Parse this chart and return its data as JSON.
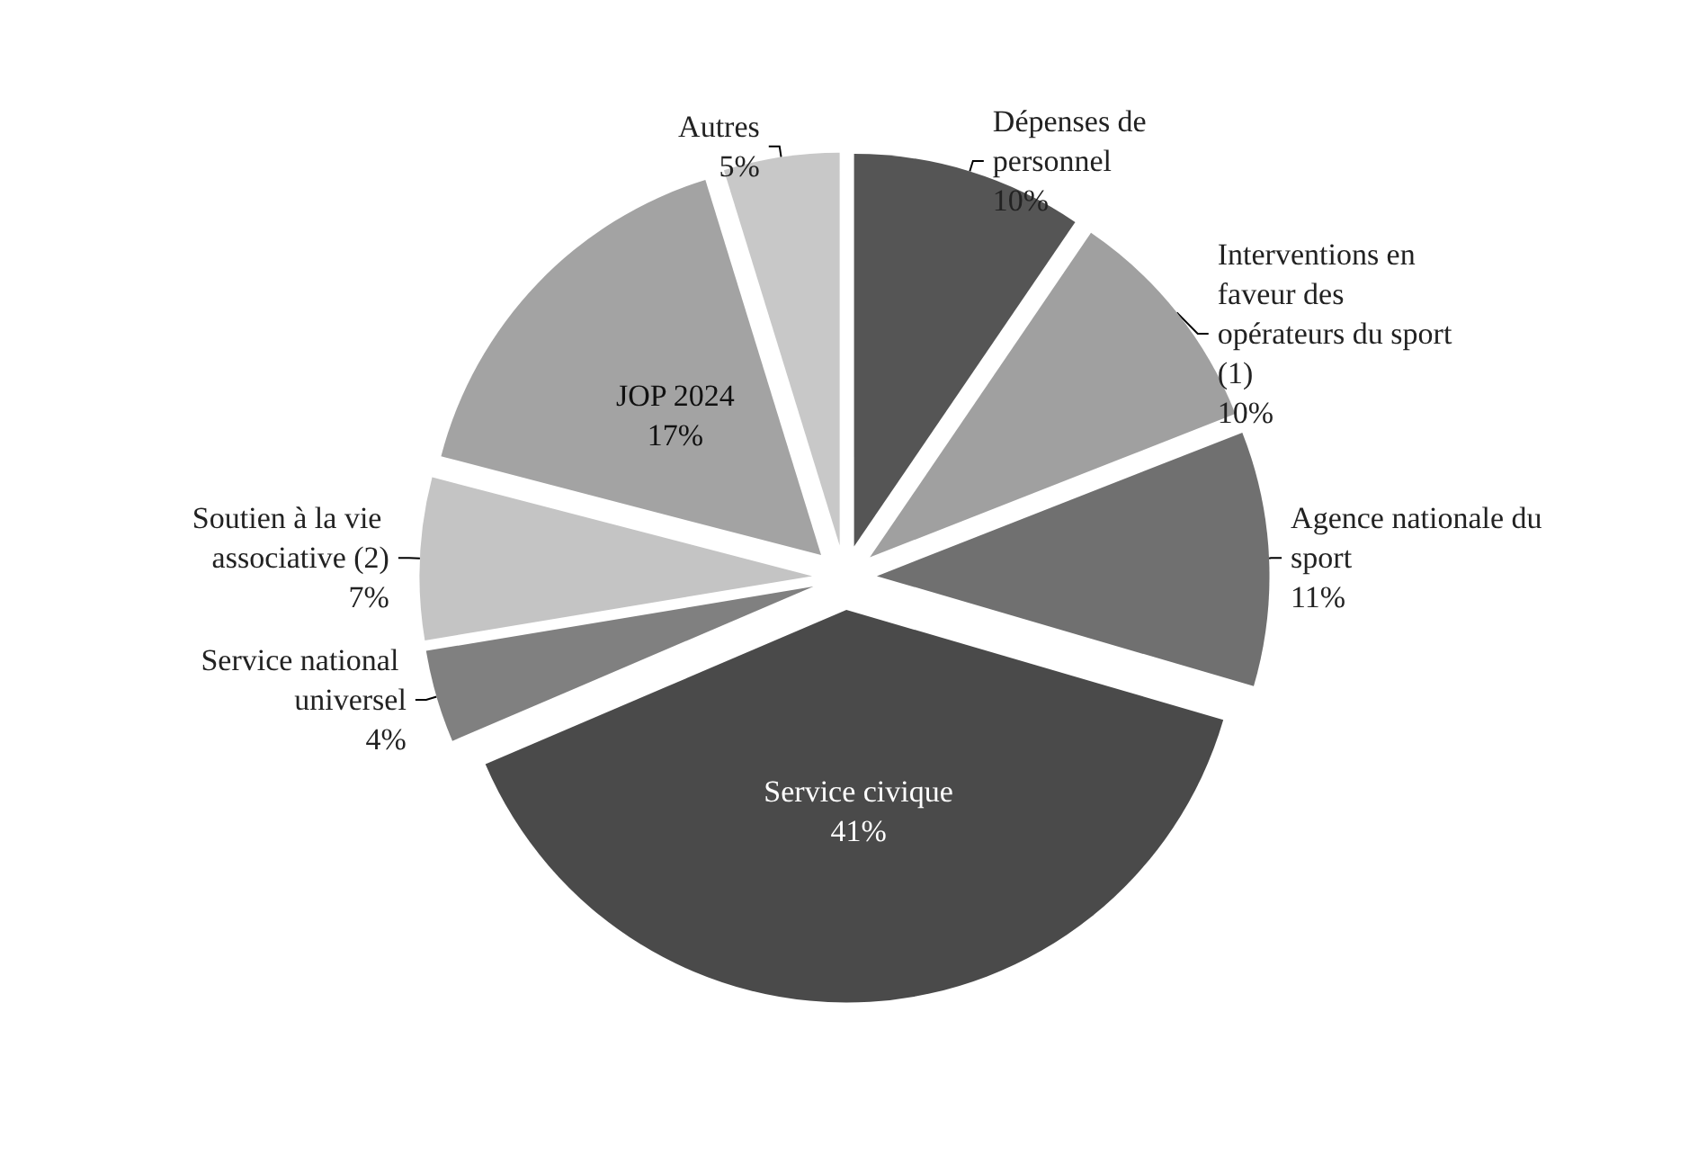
{
  "chart_data": {
    "type": "pie",
    "categories": [
      "Dépenses de personnel",
      "Interventions en faveur des opérateurs du sport (1)",
      "Agence nationale du sport",
      "Service civique",
      "Service national universel",
      "Soutien à la vie associative (2)",
      "JOP 2024",
      "Autres"
    ],
    "values": [
      10,
      10,
      11,
      41,
      4,
      7,
      17,
      5
    ],
    "value_labels": [
      "10%",
      "10%",
      "11%",
      "41%",
      "4%",
      "7%",
      "17%",
      "5%"
    ],
    "colors": [
      "#555555",
      "#a0a0a0",
      "#707070",
      "#4a4a4a",
      "#808080",
      "#c4c4c4",
      "#a3a3a3",
      "#c8c8c8"
    ],
    "legend": false
  }
}
